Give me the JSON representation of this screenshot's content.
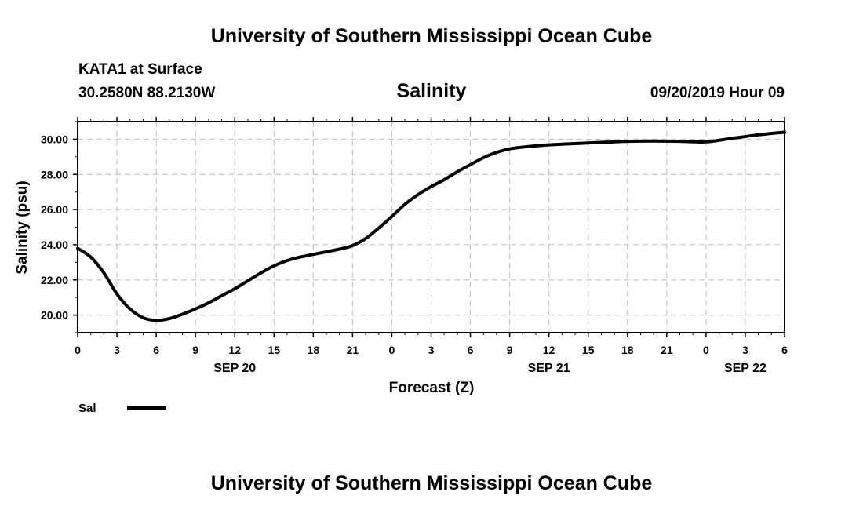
{
  "header": {
    "title_top": "University of Southern Mississippi Ocean Cube",
    "station": "KATA1 at Surface",
    "coords": "30.2580N 88.2130W",
    "timestamp": "09/20/2019 Hour 09",
    "title_bottom": "University of Southern Mississippi Ocean Cube"
  },
  "chart_data": {
    "type": "line",
    "title": "Salinity",
    "xlabel": "Forecast (Z)",
    "ylabel": "Salinity (psu)",
    "x_hours": [
      0,
      1,
      2,
      3,
      4,
      5,
      6,
      7,
      8,
      9,
      10,
      11,
      12,
      13,
      14,
      15,
      16,
      17,
      18,
      19,
      20,
      21,
      22,
      23,
      24,
      25,
      26,
      27,
      28,
      29,
      30,
      31,
      32,
      33,
      34,
      35,
      36,
      38,
      40,
      42,
      44,
      46,
      48,
      50,
      52,
      54
    ],
    "x_tick_hours": [
      0,
      3,
      6,
      9,
      12,
      15,
      18,
      21,
      24,
      27,
      30,
      33,
      36,
      39,
      42,
      45,
      48,
      51,
      54
    ],
    "x_tick_labels": [
      "0",
      "3",
      "6",
      "9",
      "12",
      "15",
      "18",
      "21",
      "0",
      "3",
      "6",
      "9",
      "12",
      "15",
      "18",
      "21",
      "0",
      "3",
      "6"
    ],
    "date_labels": [
      {
        "hour": 12,
        "label": "SEP 20"
      },
      {
        "hour": 36,
        "label": "SEP 21"
      },
      {
        "hour": 51,
        "label": "SEP 22"
      }
    ],
    "xlim": [
      0,
      54
    ],
    "ylim": [
      19,
      31
    ],
    "y_ticks": [
      20,
      22,
      24,
      26,
      28,
      30
    ],
    "y_tick_labels": [
      "20.00",
      "22.00",
      "24.00",
      "26.00",
      "28.00",
      "30.00"
    ],
    "grid": true,
    "series": [
      {
        "name": "Sal",
        "color": "#000000",
        "values": [
          23.8,
          23.3,
          22.4,
          21.2,
          20.35,
          19.85,
          19.7,
          19.8,
          20.05,
          20.35,
          20.7,
          21.1,
          21.5,
          21.95,
          22.4,
          22.8,
          23.1,
          23.3,
          23.45,
          23.6,
          23.75,
          23.95,
          24.35,
          24.95,
          25.6,
          26.3,
          26.85,
          27.3,
          27.7,
          28.15,
          28.55,
          28.95,
          29.25,
          29.45,
          29.55,
          29.62,
          29.68,
          29.75,
          29.82,
          29.88,
          29.9,
          29.88,
          29.85,
          30.05,
          30.25,
          30.4
        ]
      }
    ],
    "legend": {
      "position": "bottom-left",
      "label": "Sal"
    }
  }
}
